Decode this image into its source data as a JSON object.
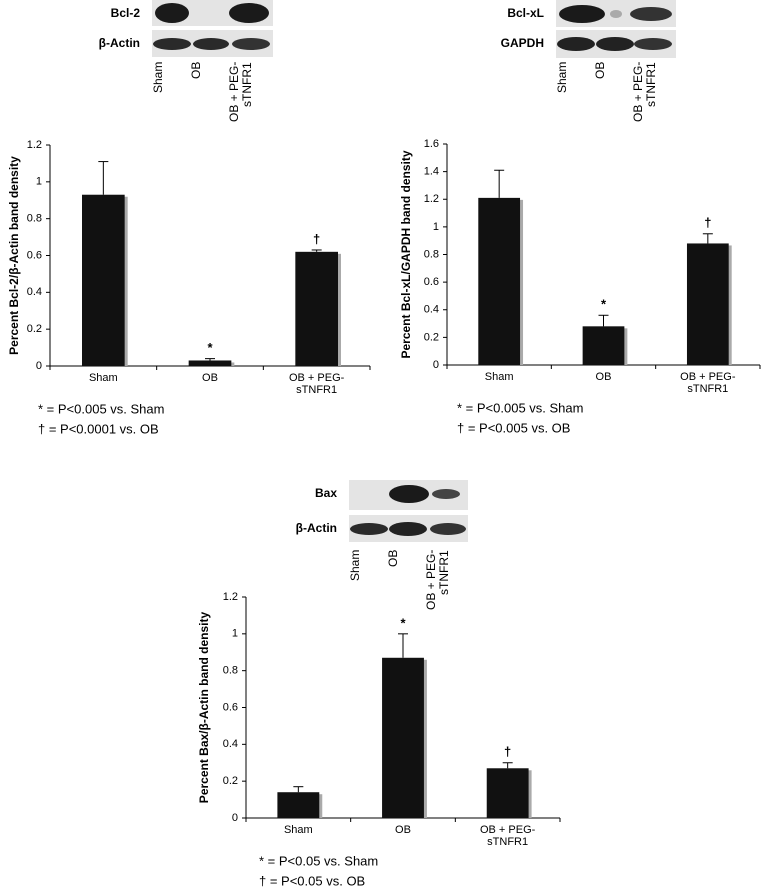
{
  "chart_data": [
    {
      "type": "bar",
      "blot": {
        "rows": [
          "Bcl-2",
          "β-Actin"
        ],
        "lanes": [
          "Sham",
          "OB",
          "OB + PEG-sTNFR1"
        ]
      },
      "ylabel": "Percent Bcl-2/β-Actin band density",
      "categories": [
        "Sham",
        "OB",
        "OB + PEG-sTNFR1"
      ],
      "values": [
        0.93,
        0.03,
        0.62
      ],
      "errors": [
        0.18,
        0.01,
        0.01
      ],
      "annotations": [
        null,
        "*",
        "†"
      ],
      "color": "#111111",
      "shadow": "#aaaaaa",
      "ylim": [
        0,
        1.2
      ],
      "yticks": [
        0,
        0.2,
        0.4,
        0.6,
        0.8,
        1,
        1.2
      ],
      "footnotes": [
        "* = P<0.005 vs. Sham",
        "† = P<0.0001 vs. OB"
      ]
    },
    {
      "type": "bar",
      "blot": {
        "rows": [
          "Bcl-xL",
          "GAPDH"
        ],
        "lanes": [
          "Sham",
          "OB",
          "OB + PEG-sTNFR1"
        ]
      },
      "ylabel": "Percent Bcl-xL/GAPDH band density",
      "categories": [
        "Sham",
        "OB",
        "OB + PEG-sTNFR1"
      ],
      "values": [
        1.21,
        0.28,
        0.88
      ],
      "errors": [
        0.2,
        0.08,
        0.07
      ],
      "annotations": [
        null,
        "*",
        "†"
      ],
      "color": "#111111",
      "shadow": "#aaaaaa",
      "ylim": [
        0,
        1.6
      ],
      "yticks": [
        0,
        0.2,
        0.4,
        0.6,
        0.8,
        1,
        1.2,
        1.4,
        1.6
      ],
      "footnotes": [
        "* = P<0.005 vs. Sham",
        "† = P<0.005 vs. OB"
      ]
    },
    {
      "type": "bar",
      "blot": {
        "rows": [
          "Bax",
          "β-Actin"
        ],
        "lanes": [
          "Sham",
          "OB",
          "OB + PEG-sTNFR1"
        ]
      },
      "ylabel": "Percent Bax/β-Actin band density",
      "categories": [
        "Sham",
        "OB",
        "OB + PEG-sTNFR1"
      ],
      "values": [
        0.14,
        0.87,
        0.27
      ],
      "errors": [
        0.03,
        0.13,
        0.03
      ],
      "annotations": [
        null,
        "*",
        "†"
      ],
      "color": "#111111",
      "shadow": "#aaaaaa",
      "ylim": [
        0,
        1.2
      ],
      "yticks": [
        0,
        0.2,
        0.4,
        0.6,
        0.8,
        1,
        1.2
      ],
      "footnotes": [
        "* = P<0.05 vs. Sham",
        "† = P<0.05 vs. OB"
      ]
    }
  ]
}
